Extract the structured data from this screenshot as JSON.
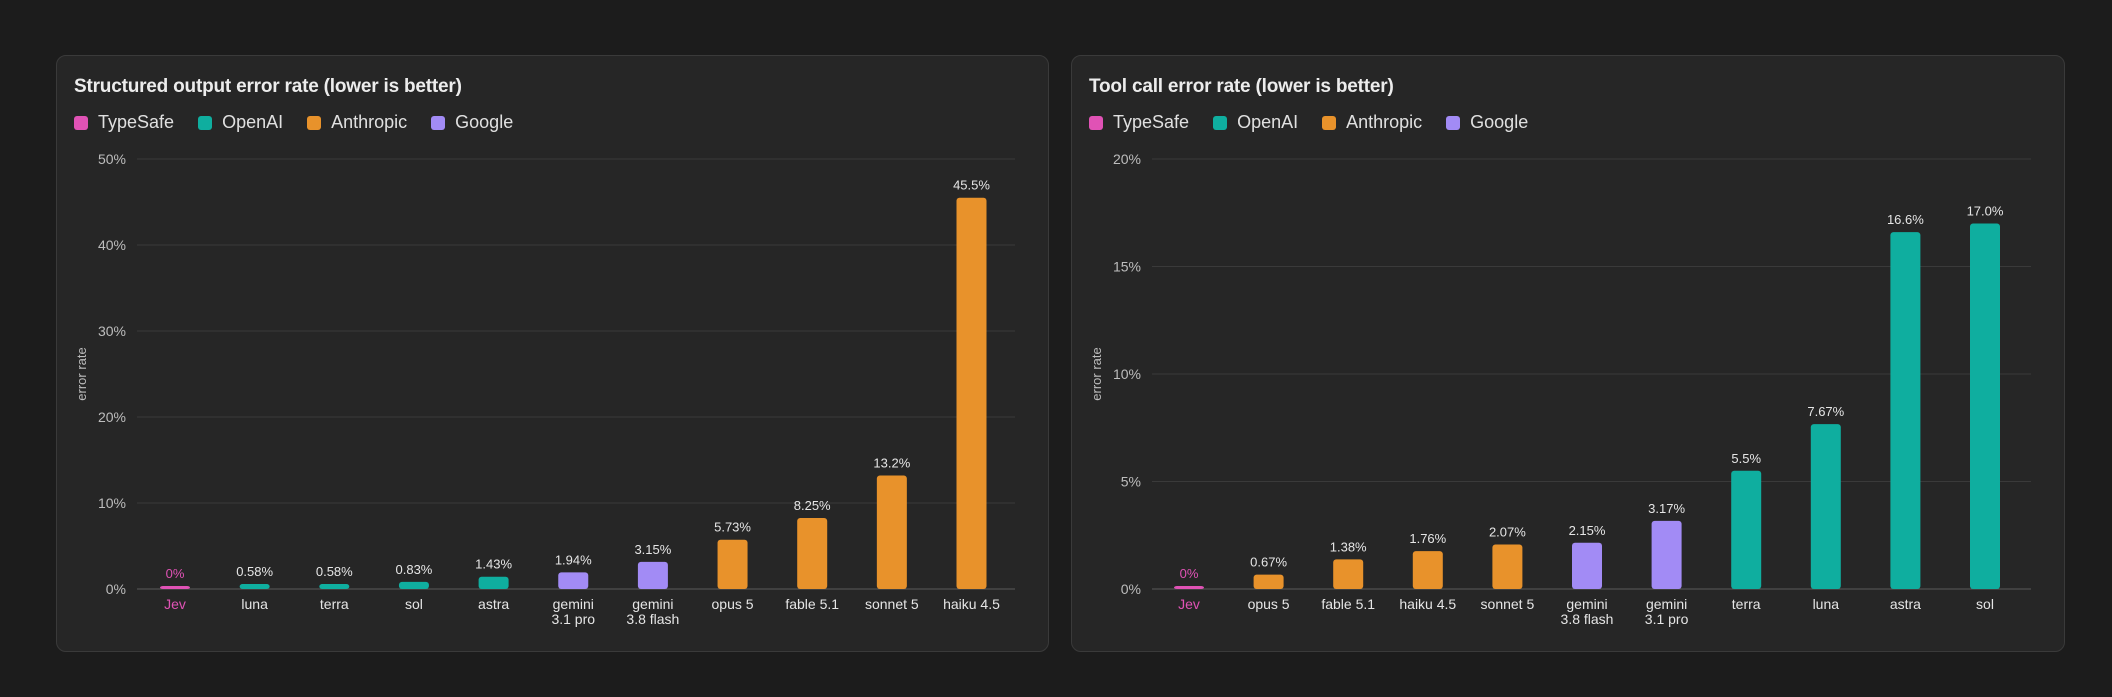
{
  "colors": {
    "TypeSafe": "#e052b5",
    "OpenAI": "#0fae9f",
    "Anthropic": "#e8922b",
    "Google": "#a28bf5"
  },
  "chart_data": [
    {
      "type": "bar",
      "title": "Structured output error rate (lower is better)",
      "ylabel": "error rate",
      "ylim": [
        0,
        50
      ],
      "yticks": [
        "0%",
        "10%",
        "20%",
        "30%",
        "40%",
        "50%"
      ],
      "yticks_values": [
        0,
        10,
        20,
        30,
        40,
        50
      ],
      "legend": [
        "TypeSafe",
        "OpenAI",
        "Anthropic",
        "Google"
      ],
      "grid": true,
      "bars": [
        {
          "label": [
            "Jev"
          ],
          "value": 0,
          "value_label": "0%",
          "group": "TypeSafe"
        },
        {
          "label": [
            "luna"
          ],
          "value": 0.58,
          "value_label": "0.58%",
          "group": "OpenAI"
        },
        {
          "label": [
            "terra"
          ],
          "value": 0.58,
          "value_label": "0.58%",
          "group": "OpenAI"
        },
        {
          "label": [
            "sol"
          ],
          "value": 0.83,
          "value_label": "0.83%",
          "group": "OpenAI"
        },
        {
          "label": [
            "astra"
          ],
          "value": 1.43,
          "value_label": "1.43%",
          "group": "OpenAI"
        },
        {
          "label": [
            "gemini",
            "3.1 pro"
          ],
          "value": 1.94,
          "value_label": "1.94%",
          "group": "Google"
        },
        {
          "label": [
            "gemini",
            "3.8 flash"
          ],
          "value": 3.15,
          "value_label": "3.15%",
          "group": "Google"
        },
        {
          "label": [
            "opus 5"
          ],
          "value": 5.73,
          "value_label": "5.73%",
          "group": "Anthropic"
        },
        {
          "label": [
            "fable 5.1"
          ],
          "value": 8.25,
          "value_label": "8.25%",
          "group": "Anthropic"
        },
        {
          "label": [
            "sonnet 5"
          ],
          "value": 13.2,
          "value_label": "13.2%",
          "group": "Anthropic"
        },
        {
          "label": [
            "haiku 4.5"
          ],
          "value": 45.5,
          "value_label": "45.5%",
          "group": "Anthropic"
        }
      ]
    },
    {
      "type": "bar",
      "title": "Tool call error rate (lower is better)",
      "ylabel": "error rate",
      "ylim": [
        0,
        20
      ],
      "yticks": [
        "0%",
        "5%",
        "10%",
        "15%",
        "20%"
      ],
      "yticks_values": [
        0,
        5,
        10,
        15,
        20
      ],
      "legend": [
        "TypeSafe",
        "OpenAI",
        "Anthropic",
        "Google"
      ],
      "grid": true,
      "bars": [
        {
          "label": [
            "Jev"
          ],
          "value": 0,
          "value_label": "0%",
          "group": "TypeSafe"
        },
        {
          "label": [
            "opus 5"
          ],
          "value": 0.67,
          "value_label": "0.67%",
          "group": "Anthropic"
        },
        {
          "label": [
            "fable 5.1"
          ],
          "value": 1.38,
          "value_label": "1.38%",
          "group": "Anthropic"
        },
        {
          "label": [
            "haiku 4.5"
          ],
          "value": 1.76,
          "value_label": "1.76%",
          "group": "Anthropic"
        },
        {
          "label": [
            "sonnet 5"
          ],
          "value": 2.07,
          "value_label": "2.07%",
          "group": "Anthropic"
        },
        {
          "label": [
            "gemini",
            "3.8 flash"
          ],
          "value": 2.15,
          "value_label": "2.15%",
          "group": "Google"
        },
        {
          "label": [
            "gemini",
            "3.1 pro"
          ],
          "value": 3.17,
          "value_label": "3.17%",
          "group": "Google"
        },
        {
          "label": [
            "terra"
          ],
          "value": 5.5,
          "value_label": "5.5%",
          "group": "OpenAI"
        },
        {
          "label": [
            "luna"
          ],
          "value": 7.67,
          "value_label": "7.67%",
          "group": "OpenAI"
        },
        {
          "label": [
            "astra"
          ],
          "value": 16.6,
          "value_label": "16.6%",
          "group": "OpenAI"
        },
        {
          "label": [
            "sol"
          ],
          "value": 17.0,
          "value_label": "17.0%",
          "group": "OpenAI"
        }
      ]
    }
  ]
}
